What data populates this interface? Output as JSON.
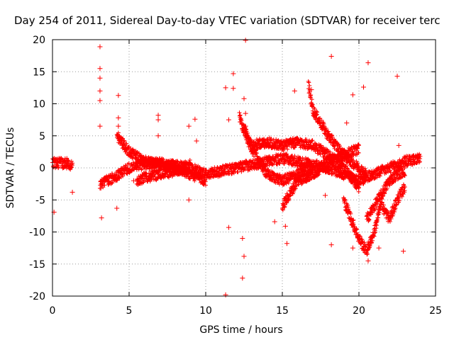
{
  "chart_data": {
    "type": "scatter",
    "title": "Day 254 of 2011, Sidereal Day-to-day VTEC variation (SDTVAR) for receiver terc",
    "xlabel": "GPS time / hours",
    "ylabel": "SDTVAR / TECUs",
    "xlim": [
      0,
      25
    ],
    "ylim": [
      -20,
      20
    ],
    "xticks": [
      0,
      5,
      10,
      15,
      20,
      25
    ],
    "yticks": [
      -20,
      -15,
      -10,
      -5,
      0,
      5,
      10,
      15,
      20
    ],
    "grid": true,
    "marker": "+",
    "color": "#ff0000",
    "series": [
      {
        "name": "SDTVAR",
        "bands": [
          {
            "x": [
              0.0,
              1.0,
              1.3
            ],
            "y": [
              0.8,
              0.7,
              0.2
            ]
          },
          {
            "x": [
              3.1,
              4.0,
              5.0,
              6.0,
              7.0,
              8.0,
              9.0,
              10.0
            ],
            "y": [
              -2.5,
              -1.5,
              0.0,
              0.6,
              0.8,
              0.3,
              0.0,
              -1.0
            ]
          },
          {
            "x": [
              10.0,
              11.0,
              12.0,
              13.0,
              14.0,
              15.0,
              16.0,
              17.0,
              18.0,
              19.0,
              20.0,
              21.0,
              22.0,
              23.0,
              24.0
            ],
            "y": [
              -1.0,
              -0.5,
              0.0,
              0.5,
              1.0,
              1.5,
              1.0,
              0.5,
              0.0,
              -1.0,
              -2.0,
              -1.0,
              0.0,
              1.0,
              1.5
            ]
          },
          {
            "x": [
              4.2,
              5.0,
              6.0,
              7.0,
              8.0,
              9.0,
              10.0
            ],
            "y": [
              5.0,
              2.5,
              1.0,
              0.5,
              0.0,
              -1.0,
              -2.0
            ]
          },
          {
            "x": [
              5.5,
              6.0,
              7.0,
              8.0,
              9.0
            ],
            "y": [
              -2.0,
              -1.5,
              -1.0,
              -0.5,
              0.5
            ]
          },
          {
            "x": [
              12.5,
              13.0,
              14.0,
              15.0,
              16.0,
              17.0,
              18.0,
              19.0,
              20.0
            ],
            "y": [
              6.0,
              3.5,
              4.0,
              3.5,
              4.0,
              3.5,
              2.0,
              0.0,
              -3.0
            ]
          },
          {
            "x": [
              12.2,
              12.8,
              13.5,
              14.0,
              15.0,
              16.0,
              17.0
            ],
            "y": [
              8.0,
              4.0,
              1.0,
              -1.0,
              -2.0,
              -1.0,
              0.0
            ]
          },
          {
            "x": [
              15.0,
              15.5,
              16.0,
              17.0,
              18.0,
              19.0,
              20.0
            ],
            "y": [
              -6.0,
              -4.0,
              -2.0,
              -1.0,
              1.0,
              2.0,
              3.0
            ]
          },
          {
            "x": [
              16.7,
              17.0,
              18.0,
              19.0,
              20.0,
              20.5
            ],
            "y": [
              13.0,
              9.0,
              5.0,
              2.0,
              0.0,
              -1.0
            ]
          },
          {
            "x": [
              19.0,
              19.5,
              20.0,
              20.5,
              21.0,
              21.5
            ],
            "y": [
              -5.0,
              -8.0,
              -11.0,
              -13.0,
              -10.0,
              -5.0
            ]
          },
          {
            "x": [
              20.5,
              21.0,
              21.5,
              22.0,
              22.5,
              23.0
            ],
            "y": [
              -8.0,
              -6.0,
              -4.0,
              -2.0,
              -1.0,
              -0.5
            ]
          },
          {
            "x": [
              21.5,
              22.0,
              22.5,
              23.0
            ],
            "y": [
              -6.0,
              -8.0,
              -5.0,
              -3.0
            ]
          }
        ],
        "outliers": [
          {
            "x": 3.1,
            "y": 18.9
          },
          {
            "x": 3.1,
            "y": 15.5
          },
          {
            "x": 3.1,
            "y": 14.0
          },
          {
            "x": 3.1,
            "y": 12.0
          },
          {
            "x": 3.1,
            "y": 10.5
          },
          {
            "x": 3.1,
            "y": 6.5
          },
          {
            "x": 4.3,
            "y": 11.3
          },
          {
            "x": 4.3,
            "y": 7.8
          },
          {
            "x": 4.3,
            "y": 6.5
          },
          {
            "x": 6.9,
            "y": 8.2
          },
          {
            "x": 6.9,
            "y": 7.5
          },
          {
            "x": 6.9,
            "y": 5.0
          },
          {
            "x": 8.9,
            "y": 6.5
          },
          {
            "x": 9.3,
            "y": 7.6
          },
          {
            "x": 9.4,
            "y": 4.2
          },
          {
            "x": 11.3,
            "y": 12.5
          },
          {
            "x": 11.5,
            "y": 7.5
          },
          {
            "x": 11.8,
            "y": 14.7
          },
          {
            "x": 11.8,
            "y": 12.4
          },
          {
            "x": 12.6,
            "y": 19.9
          },
          {
            "x": 12.5,
            "y": 10.8
          },
          {
            "x": 12.6,
            "y": 8.5
          },
          {
            "x": 12.6,
            "y": 6.5
          },
          {
            "x": 12.4,
            "y": -11.0
          },
          {
            "x": 12.5,
            "y": -13.8
          },
          {
            "x": 12.4,
            "y": -17.2
          },
          {
            "x": 11.3,
            "y": -19.8
          },
          {
            "x": 15.8,
            "y": 12.0
          },
          {
            "x": 16.9,
            "y": 12.2
          },
          {
            "x": 18.2,
            "y": 17.4
          },
          {
            "x": 18.2,
            "y": -12.0
          },
          {
            "x": 19.2,
            "y": 7.0
          },
          {
            "x": 19.6,
            "y": 11.4
          },
          {
            "x": 20.3,
            "y": 12.6
          },
          {
            "x": 20.6,
            "y": 16.4
          },
          {
            "x": 22.5,
            "y": 14.3
          },
          {
            "x": 22.6,
            "y": 3.5
          },
          {
            "x": 22.9,
            "y": -13.0
          },
          {
            "x": 20.6,
            "y": -14.5
          },
          {
            "x": 15.3,
            "y": -11.8
          },
          {
            "x": 15.2,
            "y": -9.1
          },
          {
            "x": 14.5,
            "y": -8.4
          },
          {
            "x": 11.5,
            "y": -9.3
          },
          {
            "x": 1.3,
            "y": -3.8
          },
          {
            "x": 0.1,
            "y": -6.9
          },
          {
            "x": 4.2,
            "y": -6.3
          },
          {
            "x": 3.2,
            "y": -7.8
          },
          {
            "x": 8.9,
            "y": -5.0
          },
          {
            "x": 5.3,
            "y": -2.0
          },
          {
            "x": 17.8,
            "y": -4.3
          },
          {
            "x": 19.6,
            "y": -12.5
          },
          {
            "x": 21.3,
            "y": -12.5
          }
        ]
      }
    ]
  }
}
